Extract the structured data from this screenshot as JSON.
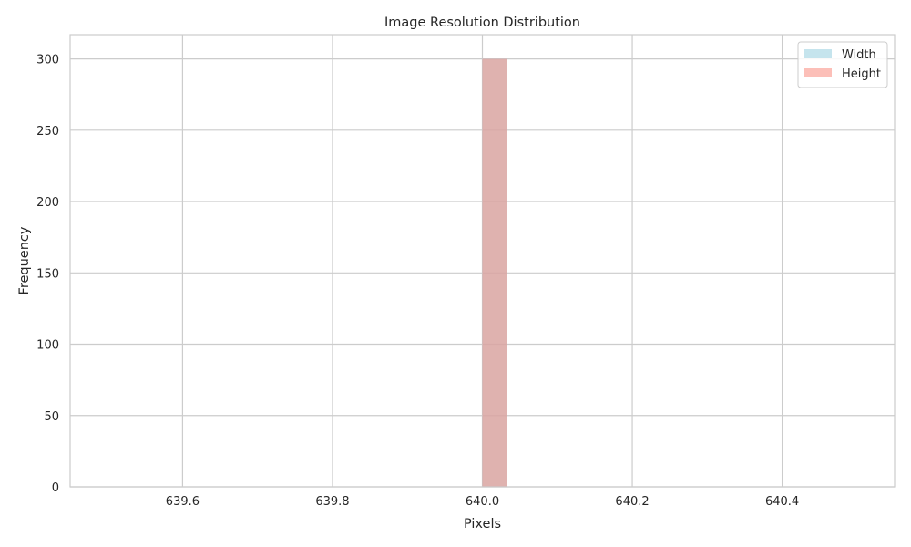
{
  "chart_data": {
    "type": "bar",
    "title": "Image Resolution Distribution",
    "xlabel": "Pixels",
    "ylabel": "Frequency",
    "xlim": [
      639.45,
      640.55
    ],
    "ylim": [
      0,
      317
    ],
    "xticks": [
      639.6,
      639.8,
      640.0,
      640.2,
      640.4
    ],
    "xtick_labels": [
      "639.6",
      "639.8",
      "640.0",
      "640.2",
      "640.4"
    ],
    "yticks": [
      0,
      50,
      100,
      150,
      200,
      250,
      300
    ],
    "ytick_labels": [
      "0",
      "50",
      "100",
      "150",
      "200",
      "250",
      "300"
    ],
    "grid": true,
    "legend_position": "top-right",
    "series": [
      {
        "name": "Width",
        "color": "#add8e6",
        "opacity": 0.7,
        "bins": [
          {
            "x0": 640.0,
            "x1": 640.0333,
            "count": 300
          }
        ]
      },
      {
        "name": "Height",
        "color": "#fa8072",
        "opacity": 0.5,
        "bins": [
          {
            "x0": 640.0,
            "x1": 640.0333,
            "count": 300
          }
        ]
      }
    ]
  }
}
